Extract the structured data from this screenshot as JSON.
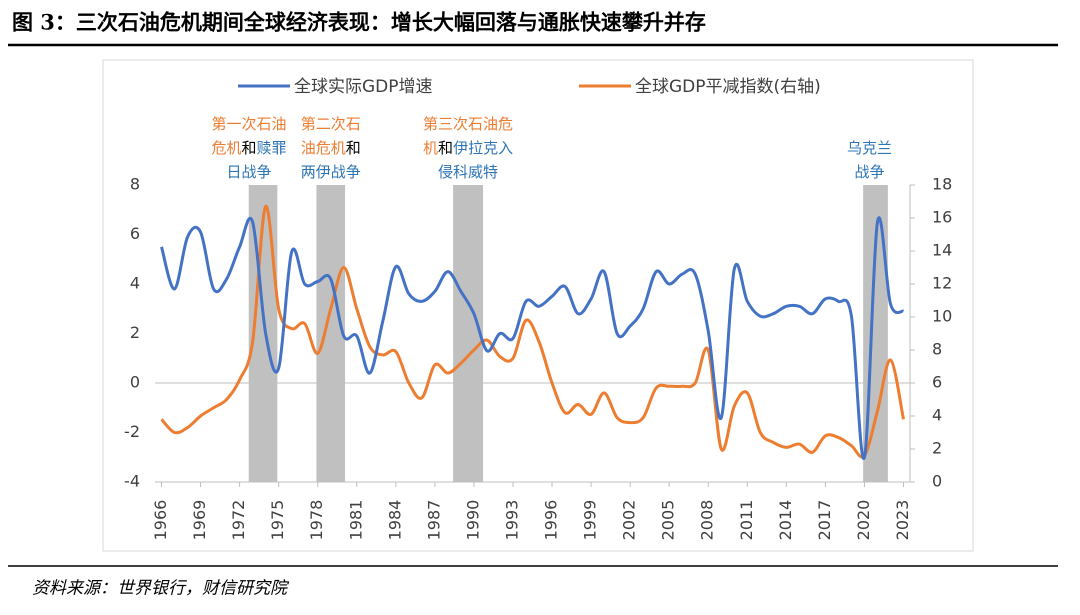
{
  "chart_data": {
    "type": "line",
    "title": "图 3：三次石油危机期间全球经济表现：增长大幅回落与通胀快速攀升并存",
    "source": "资料来源：世界银行，财信研究院",
    "x": [
      1966,
      1967,
      1968,
      1969,
      1970,
      1971,
      1972,
      1973,
      1974,
      1975,
      1976,
      1977,
      1978,
      1979,
      1980,
      1981,
      1982,
      1983,
      1984,
      1985,
      1986,
      1987,
      1988,
      1989,
      1990,
      1991,
      1992,
      1993,
      1994,
      1995,
      1996,
      1997,
      1998,
      1999,
      2000,
      2001,
      2002,
      2003,
      2004,
      2005,
      2006,
      2007,
      2008,
      2009,
      2010,
      2011,
      2012,
      2013,
      2014,
      2015,
      2016,
      2017,
      2018,
      2019,
      2020,
      2021,
      2022,
      2023
    ],
    "xlim": [
      1965.5,
      2023.5
    ],
    "xticks": [
      1966,
      1969,
      1972,
      1975,
      1978,
      1981,
      1984,
      1987,
      1990,
      1993,
      1996,
      1999,
      2002,
      2005,
      2008,
      2011,
      2014,
      2017,
      2020,
      2023
    ],
    "ylim": [
      -4,
      8
    ],
    "yticks": [
      -4,
      -2,
      0,
      2,
      4,
      6,
      8
    ],
    "y2lim": [
      0,
      18
    ],
    "y2ticks": [
      0,
      2,
      4,
      6,
      8,
      10,
      12,
      14,
      16,
      18
    ],
    "negative_tick_color": "#ff0000",
    "series": [
      {
        "name": "全球实际GDP增速",
        "color": "#4472c4",
        "values": [
          5.5,
          3.8,
          5.9,
          6.1,
          3.8,
          4.2,
          5.5,
          6.5,
          2.0,
          0.6,
          5.3,
          4.0,
          4.1,
          4.2,
          1.9,
          1.9,
          0.4,
          2.5,
          4.7,
          3.6,
          3.3,
          3.7,
          4.5,
          3.7,
          2.8,
          1.3,
          2.0,
          1.8,
          3.3,
          3.1,
          3.5,
          3.9,
          2.8,
          3.4,
          4.5,
          2.0,
          2.3,
          3.0,
          4.5,
          4.0,
          4.4,
          4.4,
          2.1,
          -1.4,
          4.6,
          3.3,
          2.7,
          2.8,
          3.1,
          3.1,
          2.8,
          3.4,
          3.3,
          2.7,
          -3.0,
          6.5,
          3.2,
          2.9
        ]
      },
      {
        "name": "全球GDP平减指数(右轴)",
        "color": "#ed7d31",
        "axis": "y2",
        "values": [
          3.8,
          3.0,
          3.3,
          4.0,
          4.5,
          5.0,
          6.2,
          8.5,
          16.7,
          10.5,
          9.3,
          9.6,
          7.8,
          10.5,
          13.0,
          10.5,
          8.2,
          7.7,
          7.9,
          6.0,
          5.1,
          7.1,
          6.6,
          7.2,
          8.0,
          8.6,
          7.6,
          7.5,
          9.8,
          8.5,
          6.0,
          4.2,
          4.7,
          4.1,
          5.4,
          3.9,
          3.6,
          3.9,
          5.7,
          5.8,
          5.8,
          6.0,
          8.0,
          2.0,
          4.6,
          5.4,
          3.0,
          2.4,
          2.1,
          2.3,
          1.8,
          2.8,
          2.7,
          2.2,
          1.6,
          4.3,
          7.4,
          3.8
        ]
      }
    ],
    "shade_color": "#c0c0c0",
    "periods": [
      {
        "range": [
          1972.7,
          1974.9
        ],
        "label": [
          [
            {
              "text": "第一次石油",
              "color": "#ed7d31"
            }
          ],
          [
            {
              "text": "危机",
              "color": "#ed7d31"
            },
            {
              "text": "和",
              "color": "#000000"
            },
            {
              "text": "赎罪",
              "color": "#2e75b6"
            }
          ],
          [
            {
              "text": "日战争",
              "color": "#2e75b6"
            }
          ]
        ]
      },
      {
        "range": [
          1977.9,
          1980.1
        ],
        "label": [
          [
            {
              "text": "第二次石",
              "color": "#ed7d31"
            }
          ],
          [
            {
              "text": "油危机",
              "color": "#ed7d31"
            },
            {
              "text": "和",
              "color": "#000000"
            }
          ],
          [
            {
              "text": "两伊战争",
              "color": "#2e75b6"
            }
          ]
        ]
      },
      {
        "range": [
          1988.4,
          1990.7
        ],
        "label": [
          [
            {
              "text": "第三次石油危",
              "color": "#ed7d31"
            }
          ],
          [
            {
              "text": "机",
              "color": "#ed7d31"
            },
            {
              "text": "和",
              "color": "#000000"
            },
            {
              "text": "伊拉克入",
              "color": "#2e75b6"
            }
          ],
          [
            {
              "text": "侵科威特",
              "color": "#2e75b6"
            }
          ]
        ]
      },
      {
        "range": [
          2019.9,
          2021.8
        ],
        "label": [
          [
            {
              "text": "乌克兰",
              "color": "#2e75b6"
            }
          ],
          [
            {
              "text": "战争",
              "color": "#2e75b6"
            }
          ]
        ]
      }
    ]
  }
}
